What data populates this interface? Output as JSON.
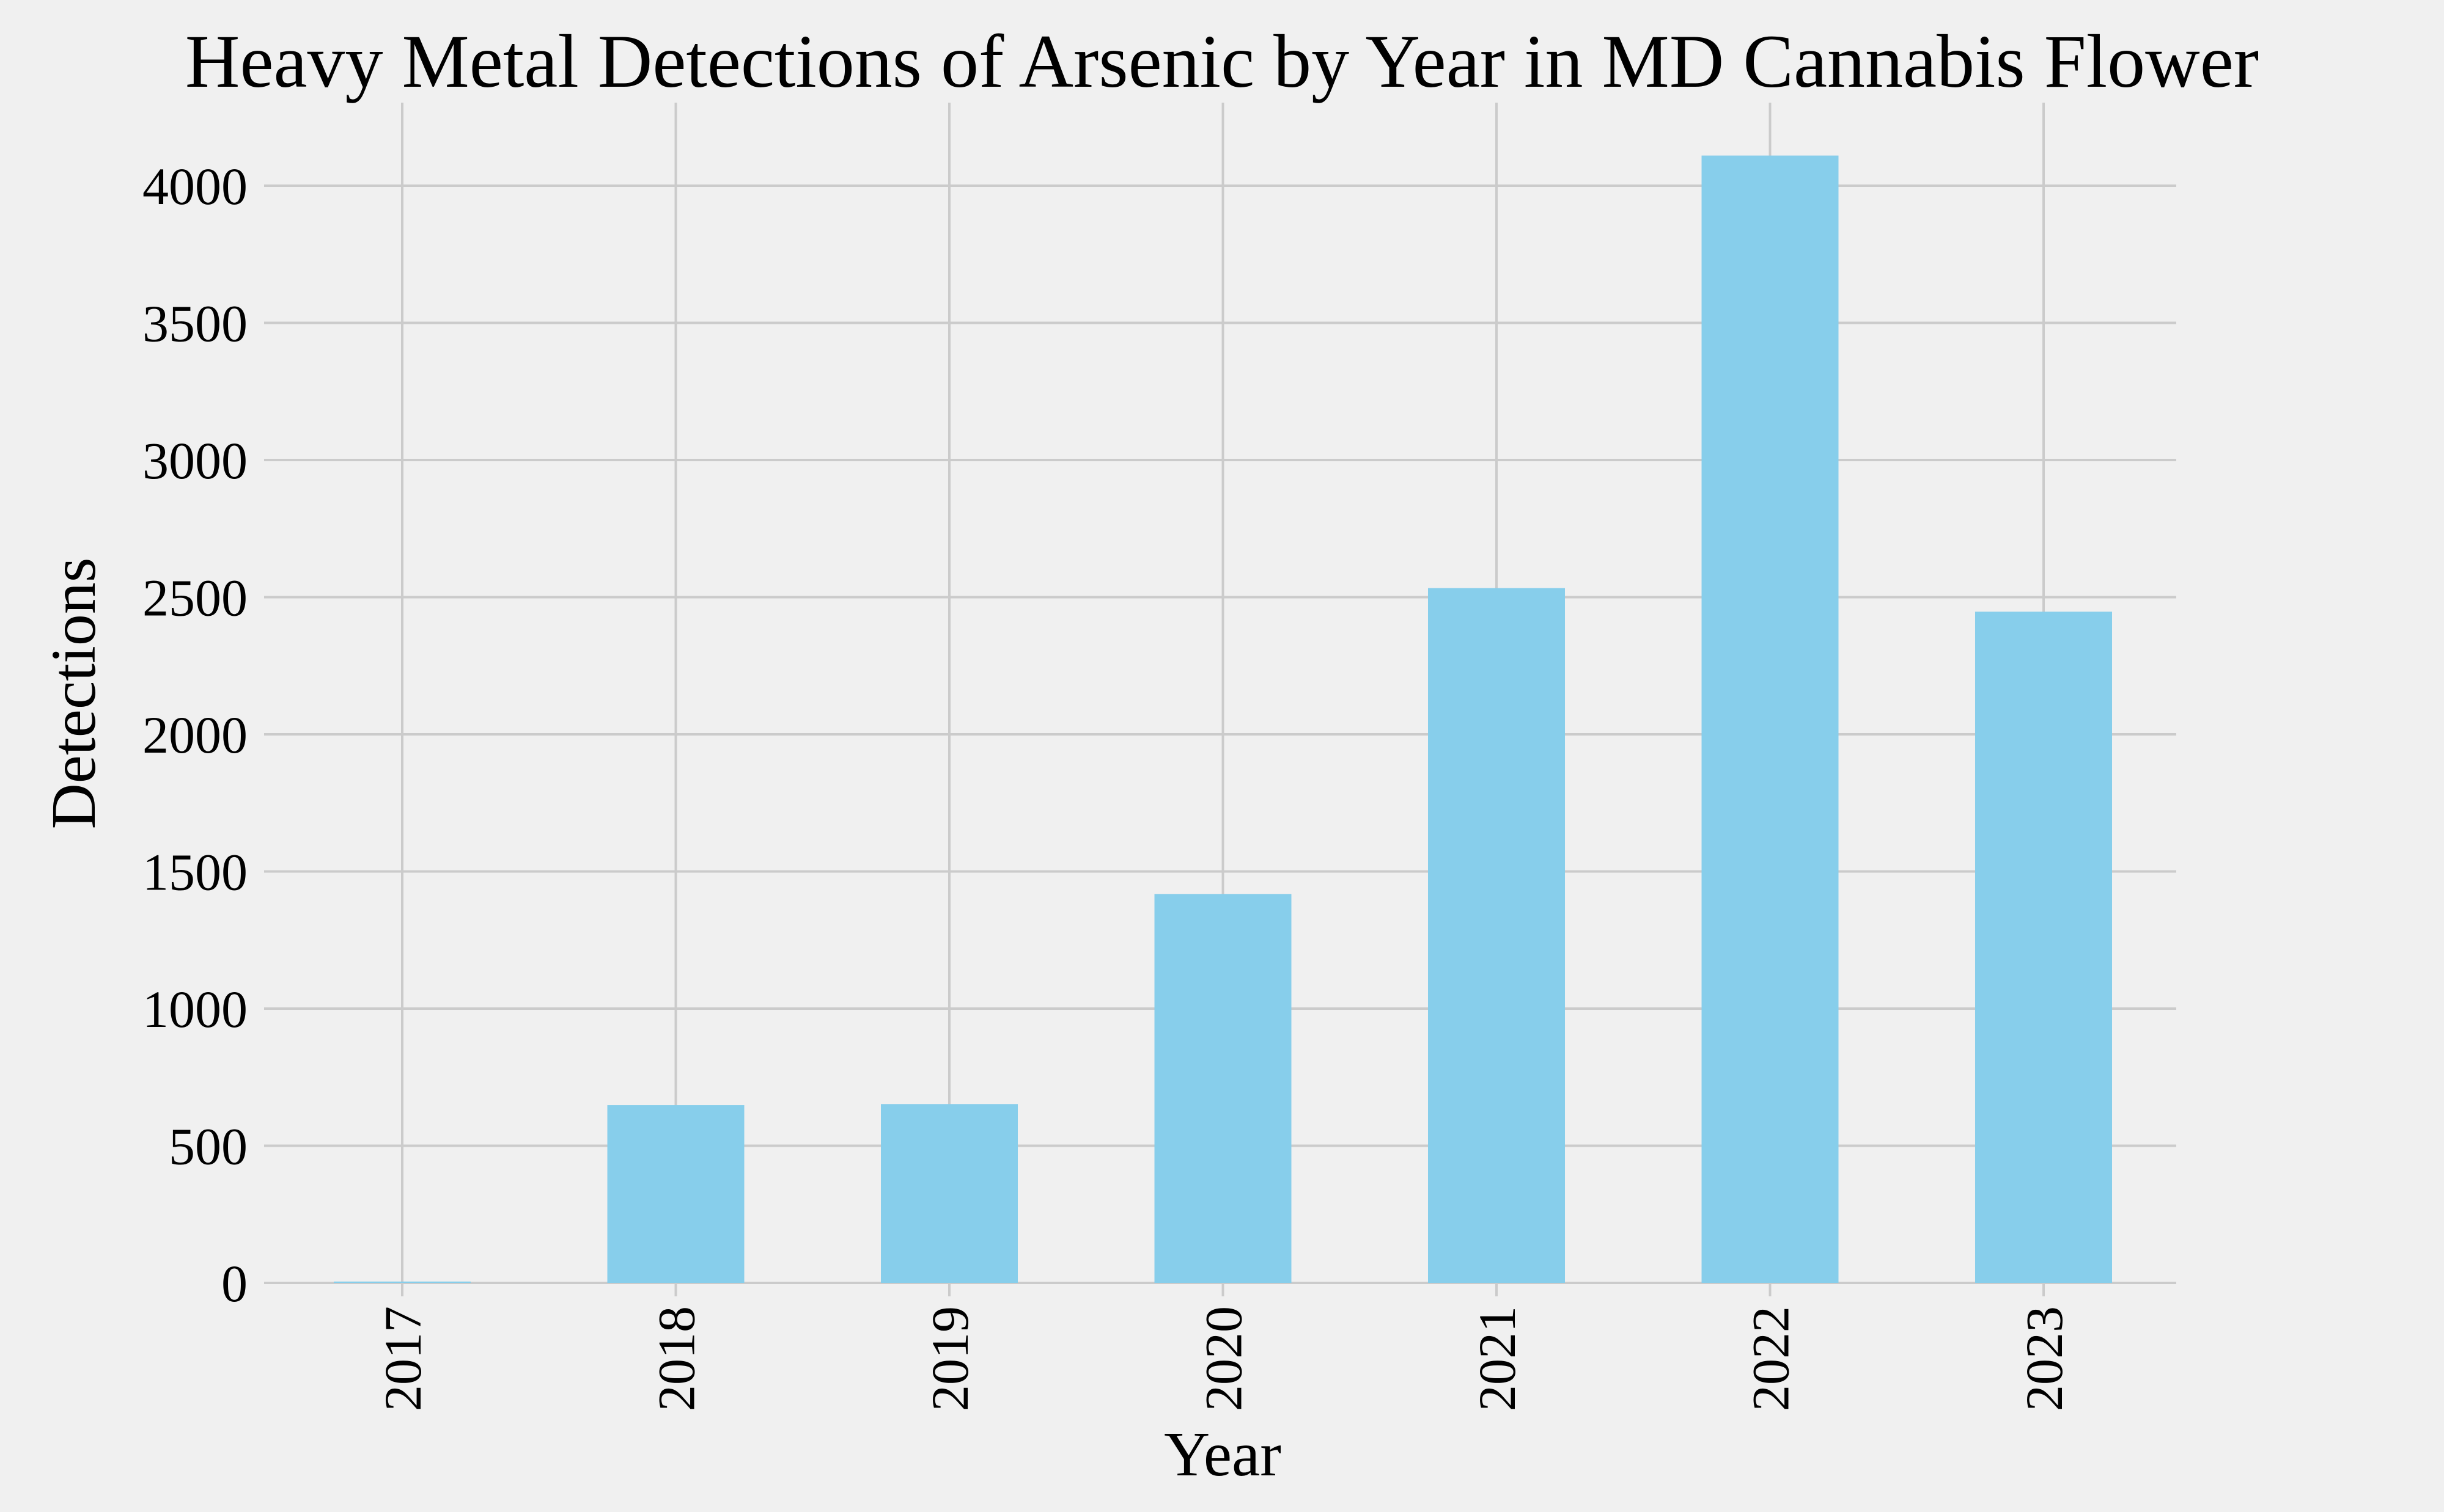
{
  "chart_data": {
    "type": "bar",
    "title": "Heavy Metal Detections of Arsenic by Year in MD Cannabis Flower",
    "xlabel": "Year",
    "ylabel": "Detections",
    "categories": [
      "2017",
      "2018",
      "2019",
      "2020",
      "2021",
      "2022",
      "2023"
    ],
    "values": [
      5,
      648,
      652,
      1418,
      2533,
      4110,
      2447
    ],
    "ylim": [
      0,
      4300
    ],
    "yticks": [
      0,
      500,
      1000,
      1500,
      2000,
      2500,
      3000,
      3500,
      4000
    ],
    "grid": true,
    "bar_color": "#87ceeb",
    "background_color": "#f0f0f0",
    "grid_color": "#cbcbcb"
  }
}
